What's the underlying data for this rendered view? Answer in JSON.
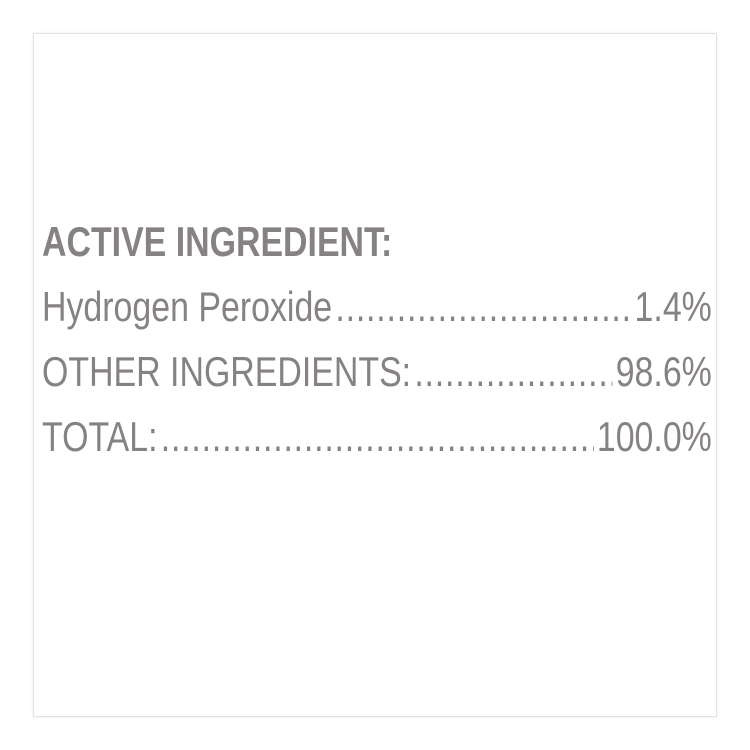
{
  "heading": "ACTIVE INGREDIENT:",
  "rows": [
    {
      "label": "Hydrogen Peroxide",
      "value": "1.4%"
    },
    {
      "label": "OTHER INGREDIENTS:",
      "value": "98.6%"
    },
    {
      "label": "TOTAL:",
      "value": "100.0%"
    }
  ],
  "colors": {
    "text": "#878282",
    "border": "#e2e2e2"
  }
}
